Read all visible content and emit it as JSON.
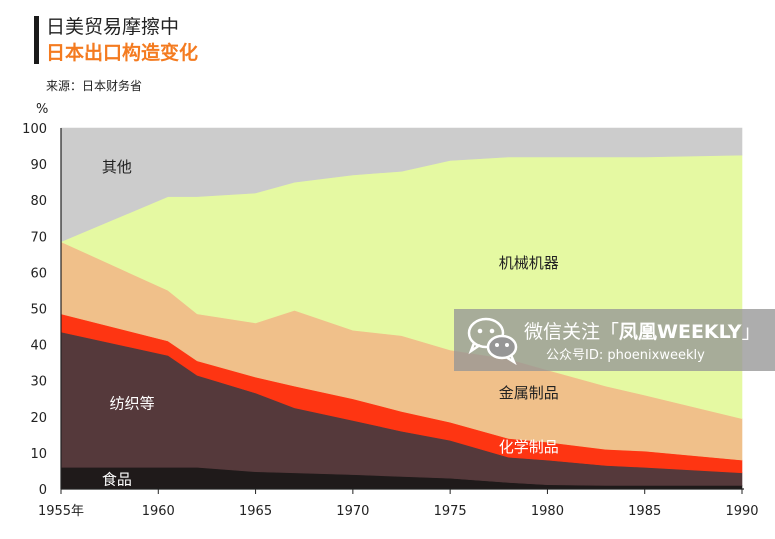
{
  "header": {
    "title": "日美贸易摩擦中",
    "subtitle": "日本出口构造变化",
    "source": "来源：日本财务省"
  },
  "watermark": {
    "title_prefix": "微信关注「",
    "title_brand": "凤凰WEEKLY",
    "title_suffix": "」",
    "subtitle": "公众号ID: phoenixweekly",
    "icon": "wechat-icon"
  },
  "chart_data": {
    "type": "area",
    "stacked": true,
    "ylabel": "%",
    "ylim": [
      0,
      100
    ],
    "yticks": [
      0,
      10,
      20,
      30,
      40,
      50,
      60,
      70,
      80,
      90,
      100
    ],
    "xlim": [
      1955,
      1990
    ],
    "xticks": [
      1955,
      1960,
      1965,
      1970,
      1975,
      1980,
      1985,
      1990
    ],
    "xtick_labels": [
      "1955年",
      "1960",
      "1965",
      "1970",
      "1975",
      "1980",
      "1985",
      "1990"
    ],
    "x": [
      1955,
      1960.5,
      1962,
      1965,
      1967,
      1970,
      1972.5,
      1975,
      1978,
      1980,
      1983,
      1985,
      1990
    ],
    "series": [
      {
        "name": "食品",
        "color": "#1f1a1a",
        "label_x": 1957.1,
        "label_y": 2.5,
        "values": [
          6,
          6,
          6,
          4.8,
          4.5,
          4,
          3.5,
          3,
          1.8,
          1.2,
          1,
          1,
          1
        ]
      },
      {
        "name": "纺织等",
        "color": "#55393b",
        "label_x": 1957.5,
        "label_y": 23.5,
        "values": [
          37.5,
          31,
          25.5,
          21.8,
          18,
          15,
          12.5,
          10.5,
          7,
          6.8,
          5.5,
          5,
          3.5
        ]
      },
      {
        "name": "化学制品",
        "color": "#fe3512",
        "label_x": 1977.5,
        "label_y": 11.5,
        "values": [
          5,
          4,
          4,
          4.4,
          6,
          6,
          5.5,
          5,
          5.2,
          5,
          4.5,
          4.5,
          3.5
        ]
      },
      {
        "name": "金属制品",
        "color": "#f0c08a",
        "label_x": 1977.5,
        "label_y": 26.5,
        "values": [
          20,
          14,
          13,
          15,
          21,
          19,
          21,
          20,
          22,
          20,
          17.5,
          15.5,
          11.5
        ]
      },
      {
        "name": "机械机器",
        "color": "#e5f9a2",
        "label_x": 1977.5,
        "label_y": 62.5,
        "values": [
          0,
          26,
          32.5,
          36,
          35.5,
          43,
          45.5,
          52.5,
          56,
          59,
          63.5,
          66,
          73
        ]
      },
      {
        "name": "其他",
        "color": "#cccccc",
        "label_x": 1957.1,
        "label_y": 89,
        "values": [
          31.5,
          19,
          19,
          18,
          15,
          13,
          12,
          9,
          8,
          8,
          8,
          8,
          7.5
        ]
      }
    ]
  }
}
